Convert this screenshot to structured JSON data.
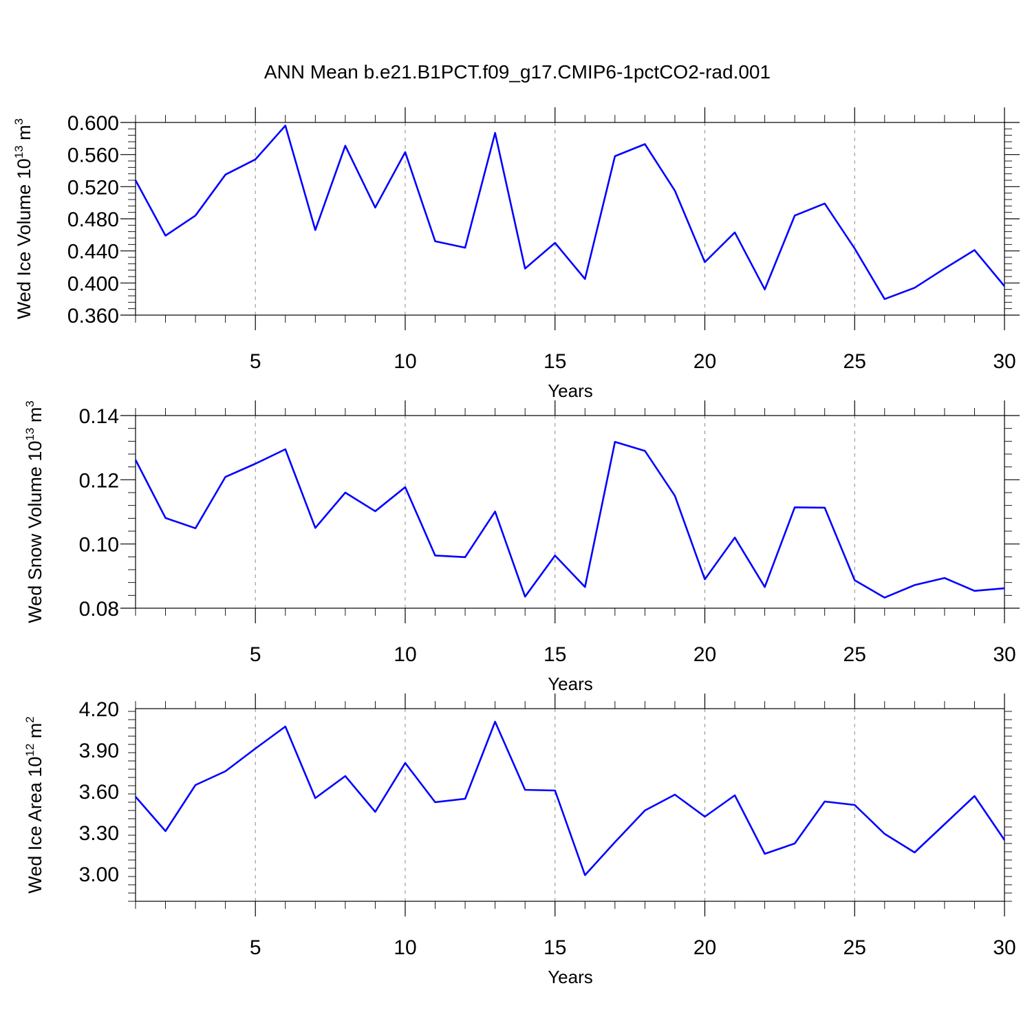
{
  "title": "ANN Mean b.e21.B1PCT.f09_g17.CMIP6-1pctCO2-rad.001",
  "chart_data": [
    {
      "type": "line",
      "xlabel": "Years",
      "ylabel": {
        "main": "Wed Ice Volume 10",
        "exp": "13",
        "unit": " m",
        "unit_exp": "3"
      },
      "xlim": [
        1,
        30
      ],
      "ylim": [
        0.36,
        0.6
      ],
      "xticks": [
        5,
        10,
        15,
        20,
        25,
        30
      ],
      "xtick_labels": [
        "5",
        "10",
        "15",
        "20",
        "25",
        "30"
      ],
      "yticks": [
        0.36,
        0.4,
        0.44,
        0.48,
        0.52,
        0.56,
        0.6
      ],
      "ytick_labels": [
        "0.360",
        "0.400",
        "0.440",
        "0.480",
        "0.520",
        "0.560",
        "0.600"
      ],
      "grid": "dashed vertical at major x ticks",
      "line_color": "#0000ff",
      "x": [
        1,
        2,
        3,
        4,
        5,
        6,
        7,
        8,
        9,
        10,
        11,
        12,
        13,
        14,
        15,
        16,
        17,
        18,
        19,
        20,
        21,
        22,
        23,
        24,
        25,
        26,
        27,
        28,
        29,
        30
      ],
      "y": [
        0.528,
        0.459,
        0.484,
        0.535,
        0.554,
        0.596,
        0.466,
        0.571,
        0.494,
        0.563,
        0.452,
        0.444,
        0.587,
        0.418,
        0.45,
        0.405,
        0.558,
        0.573,
        0.515,
        0.426,
        0.463,
        0.392,
        0.484,
        0.499,
        0.443,
        0.38,
        0.394,
        0.418,
        0.441,
        0.396
      ]
    },
    {
      "type": "line",
      "xlabel": "Years",
      "ylabel": {
        "main": "Wed Snow Volume 10",
        "exp": "13",
        "unit": " m",
        "unit_exp": "3"
      },
      "xlim": [
        1,
        30
      ],
      "ylim": [
        0.08,
        0.14
      ],
      "xticks": [
        5,
        10,
        15,
        20,
        25,
        30
      ],
      "xtick_labels": [
        "5",
        "10",
        "15",
        "20",
        "25",
        "30"
      ],
      "yticks": [
        0.08,
        0.1,
        0.12,
        0.14
      ],
      "ytick_labels": [
        "0.08",
        "0.10",
        "0.12",
        "0.14"
      ],
      "grid": "dashed vertical at major x ticks",
      "line_color": "#0000ff",
      "x": [
        1,
        2,
        3,
        4,
        5,
        6,
        7,
        8,
        9,
        10,
        11,
        12,
        13,
        14,
        15,
        16,
        17,
        18,
        19,
        20,
        21,
        22,
        23,
        24,
        25,
        26,
        27,
        28,
        29,
        30
      ],
      "y": [
        0.1262,
        0.1081,
        0.1049,
        0.1209,
        0.125,
        0.1295,
        0.105,
        0.116,
        0.1102,
        0.1177,
        0.0964,
        0.0959,
        0.1101,
        0.0836,
        0.0964,
        0.0866,
        0.1318,
        0.129,
        0.115,
        0.089,
        0.102,
        0.0866,
        0.1114,
        0.1113,
        0.0887,
        0.0833,
        0.0872,
        0.0894,
        0.0854,
        0.0862
      ]
    },
    {
      "type": "line",
      "xlabel": "Years",
      "ylabel": {
        "main": "Wed Ice Area 10",
        "exp": "12",
        "unit": " m",
        "unit_exp": "2"
      },
      "xlim": [
        1,
        30
      ],
      "ylim": [
        2.8,
        4.2
      ],
      "xticks": [
        5,
        10,
        15,
        20,
        25,
        30
      ],
      "xtick_labels": [
        "5",
        "10",
        "15",
        "20",
        "25",
        "30"
      ],
      "yticks": [
        3.0,
        3.3,
        3.6,
        3.9,
        4.2
      ],
      "ytick_labels": [
        "3.00",
        "3.30",
        "3.60",
        "3.90",
        "4.20"
      ],
      "grid": "dashed vertical at major x ticks",
      "line_color": "#0000ff",
      "x": [
        1,
        2,
        3,
        4,
        5,
        6,
        7,
        8,
        9,
        10,
        11,
        12,
        13,
        14,
        15,
        16,
        17,
        18,
        19,
        20,
        21,
        22,
        23,
        24,
        25,
        26,
        27,
        28,
        29,
        30
      ],
      "y": [
        3.56,
        3.31,
        3.645,
        3.745,
        3.91,
        4.07,
        3.55,
        3.71,
        3.45,
        3.805,
        3.52,
        3.545,
        4.105,
        3.61,
        3.605,
        2.99,
        3.23,
        3.46,
        3.575,
        3.415,
        3.57,
        3.145,
        3.22,
        3.525,
        3.5,
        3.29,
        3.155,
        3.36,
        3.565,
        3.245
      ]
    }
  ]
}
